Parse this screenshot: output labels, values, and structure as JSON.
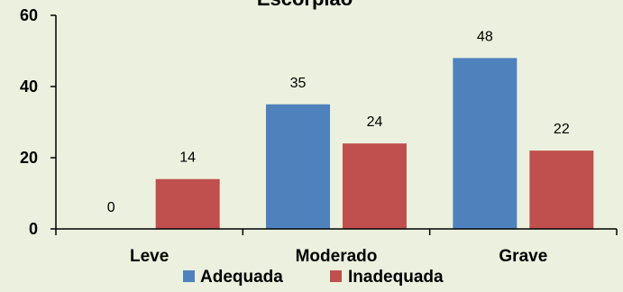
{
  "chart_data": {
    "type": "bar",
    "title": "Escorpião",
    "categories": [
      "Leve",
      "Moderado",
      "Grave"
    ],
    "series": [
      {
        "name": "Adequada",
        "values": [
          0,
          35,
          48
        ],
        "color": "#4f81bd"
      },
      {
        "name": "Inadequada",
        "values": [
          14,
          24,
          22
        ],
        "color": "#c0504d"
      }
    ],
    "y_ticks": [
      "0",
      "20",
      "40",
      "60"
    ],
    "ylim": [
      0,
      60
    ],
    "xlabel": "",
    "ylabel": "",
    "grid": false,
    "legend": "bottom"
  }
}
